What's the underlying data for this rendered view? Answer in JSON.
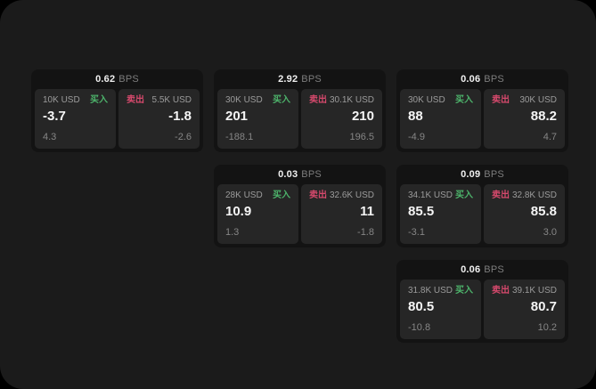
{
  "page": {
    "background": "#000000",
    "panel_background": "#1b1b1b"
  },
  "labels": {
    "bps_unit": "BPS",
    "buy": "买入",
    "sell": "卖出"
  },
  "colors": {
    "buy": "#4db36b",
    "sell": "#d5496c",
    "card_background": "#131313",
    "tile_background": "#262626"
  },
  "cards": [
    {
      "row": 1,
      "col": 1,
      "bps": "0.62",
      "buy": {
        "size": "10K USD",
        "value": "-3.7",
        "delta": "4.3"
      },
      "sell": {
        "size": "5.5K USD",
        "value": "-1.8",
        "delta": "-2.6"
      }
    },
    {
      "row": 1,
      "col": 2,
      "bps": "2.92",
      "buy": {
        "size": "30K USD",
        "value": "201",
        "delta": "-188.1"
      },
      "sell": {
        "size": "30.1K USD",
        "value": "210",
        "delta": "196.5"
      }
    },
    {
      "row": 1,
      "col": 3,
      "bps": "0.06",
      "buy": {
        "size": "30K USD",
        "value": "88",
        "delta": "-4.9"
      },
      "sell": {
        "size": "30K USD",
        "value": "88.2",
        "delta": "4.7"
      }
    },
    {
      "row": 2,
      "col": 2,
      "bps": "0.03",
      "buy": {
        "size": "28K USD",
        "value": "10.9",
        "delta": "1.3"
      },
      "sell": {
        "size": "32.6K USD",
        "value": "11",
        "delta": "-1.8"
      }
    },
    {
      "row": 2,
      "col": 3,
      "bps": "0.09",
      "buy": {
        "size": "34.1K USD",
        "value": "85.5",
        "delta": "-3.1"
      },
      "sell": {
        "size": "32.8K USD",
        "value": "85.8",
        "delta": "3.0"
      }
    },
    {
      "row": 3,
      "col": 3,
      "bps": "0.06",
      "buy": {
        "size": "31.8K USD",
        "value": "80.5",
        "delta": "-10.8"
      },
      "sell": {
        "size": "39.1K USD",
        "value": "80.7",
        "delta": "10.2"
      }
    }
  ]
}
